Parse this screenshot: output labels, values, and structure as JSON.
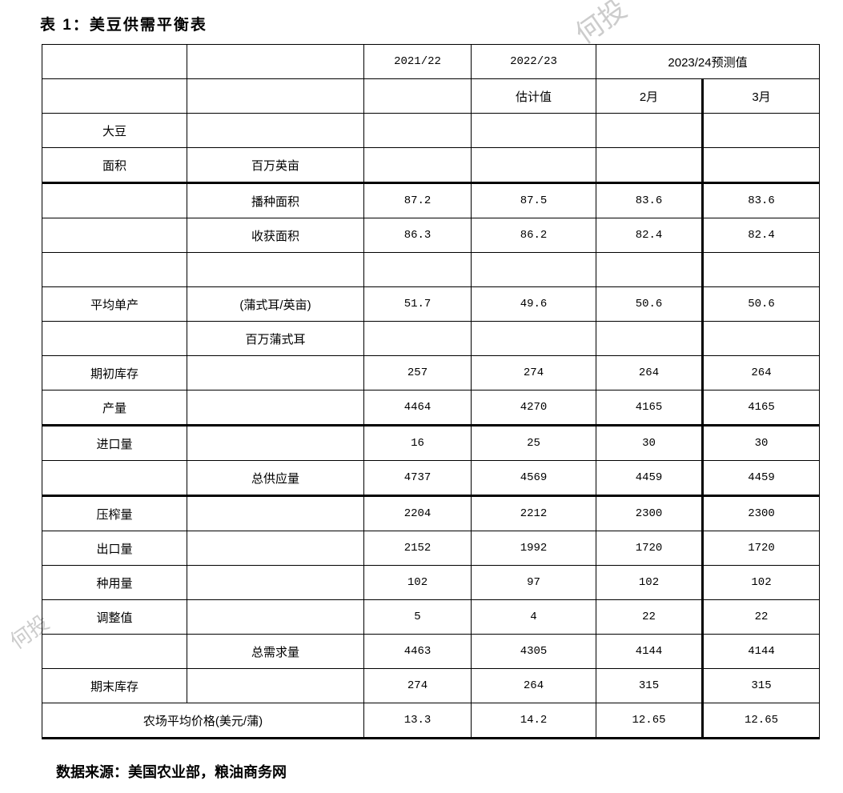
{
  "title": "表 1：美豆供需平衡表",
  "watermark": "何投",
  "header": {
    "row1": [
      "",
      "",
      "2021/22",
      "2022/23",
      "2023/24预测值"
    ],
    "row2": [
      "",
      "",
      "",
      "估计值",
      "2月",
      "3月"
    ]
  },
  "rows": [
    {
      "label": "大豆",
      "unit": "",
      "values": [
        "",
        "",
        "",
        ""
      ]
    },
    {
      "label": "面积",
      "unit": "百万英亩",
      "values": [
        "",
        "",
        "",
        ""
      ]
    },
    {
      "label": "",
      "unit": "播种面积",
      "values": [
        "87.2",
        "87.5",
        "83.6",
        "83.6"
      ]
    },
    {
      "label": "",
      "unit": "收获面积",
      "values": [
        "86.3",
        "86.2",
        "82.4",
        "82.4"
      ]
    },
    {
      "label": "",
      "unit": "",
      "values": [
        "",
        "",
        "",
        ""
      ]
    },
    {
      "label": "平均单产",
      "unit": "(蒲式耳/英亩)",
      "values": [
        "51.7",
        "49.6",
        "50.6",
        "50.6"
      ]
    },
    {
      "label": "",
      "unit": "百万蒲式耳",
      "values": [
        "",
        "",
        "",
        ""
      ]
    },
    {
      "label": "期初库存",
      "unit": "",
      "values": [
        "257",
        "274",
        "264",
        "264"
      ]
    },
    {
      "label": "产量",
      "unit": "",
      "values": [
        "4464",
        "4270",
        "4165",
        "4165"
      ]
    },
    {
      "label": "进口量",
      "unit": "",
      "values": [
        "16",
        "25",
        "30",
        "30"
      ]
    },
    {
      "label": "",
      "unit": "总供应量",
      "values": [
        "4737",
        "4569",
        "4459",
        "4459"
      ]
    },
    {
      "label": "压榨量",
      "unit": "",
      "values": [
        "2204",
        "2212",
        "2300",
        "2300"
      ]
    },
    {
      "label": "出口量",
      "unit": "",
      "values": [
        "2152",
        "1992",
        "1720",
        "1720"
      ]
    },
    {
      "label": "种用量",
      "unit": "",
      "values": [
        "102",
        "97",
        "102",
        "102"
      ]
    },
    {
      "label": "调整值",
      "unit": "",
      "values": [
        "5",
        "4",
        "22",
        "22"
      ]
    },
    {
      "label": "",
      "unit": "总需求量",
      "values": [
        "4463",
        "4305",
        "4144",
        "4144"
      ]
    },
    {
      "label": "期末库存",
      "unit": "",
      "values": [
        "274",
        "264",
        "315",
        "315"
      ]
    }
  ],
  "price_row": {
    "label": "农场平均价格(美元/蒲)",
    "values": [
      "13.3",
      "14.2",
      "12.65",
      "12.65"
    ]
  },
  "source": "数据来源：美国农业部，粮油商务网"
}
